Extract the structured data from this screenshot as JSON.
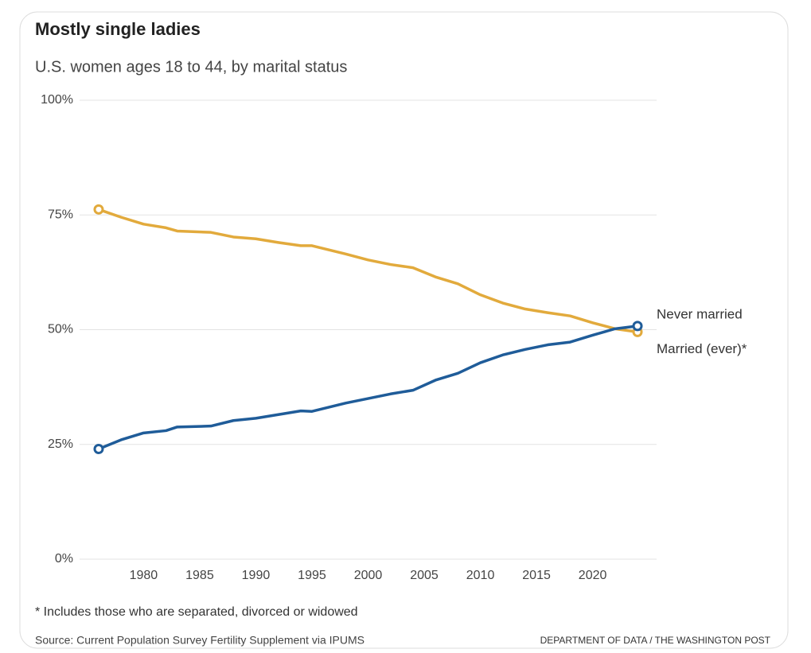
{
  "chart_data": {
    "type": "line",
    "title": "Mostly single ladies",
    "subtitle": "U.S. women ages 18 to 44, by marital status",
    "x": [
      1976,
      1978,
      1980,
      1982,
      1983,
      1986,
      1988,
      1990,
      1992,
      1994,
      1995,
      1998,
      2000,
      2002,
      2004,
      2006,
      2008,
      2010,
      2012,
      2014,
      2016,
      2018,
      2020,
      2022,
      2024
    ],
    "series": [
      {
        "name": "Married (ever)*",
        "color": "#e2aa3c",
        "values": [
          76.2,
          74.5,
          73,
          72.2,
          71.5,
          71.2,
          70.2,
          69.8,
          69,
          68.3,
          68.3,
          66.5,
          65.2,
          64.2,
          63.5,
          61.5,
          60,
          57.6,
          55.8,
          54.5,
          53.7,
          53,
          51.5,
          50.2,
          49.5
        ]
      },
      {
        "name": "Never married",
        "color": "#1f5c99",
        "values": [
          24,
          26,
          27.5,
          28,
          28.8,
          29,
          30.2,
          30.7,
          31.5,
          32.3,
          32.2,
          34,
          35,
          36,
          36.8,
          39,
          40.5,
          42.8,
          44.5,
          45.7,
          46.7,
          47.3,
          48.8,
          50.2,
          50.8
        ]
      }
    ],
    "xlim": [
      1974.3,
      2025.7
    ],
    "xticks": [
      1980,
      1985,
      1990,
      1995,
      2000,
      2005,
      2010,
      2015,
      2020
    ],
    "ylim": [
      0,
      100
    ],
    "yticks": [
      {
        "value": 0,
        "label": "0%"
      },
      {
        "value": 25,
        "label": "25%"
      },
      {
        "value": 50,
        "label": "50%"
      },
      {
        "value": 75,
        "label": "75%"
      },
      {
        "value": 100,
        "label": "100%"
      }
    ],
    "grid": true,
    "footnote": "* Includes those who are separated, divorced or widowed",
    "source": "Source: Current Population Survey Fertility Supplement via IPUMS",
    "credit": "DEPARTMENT OF DATA / THE WASHINGTON POST"
  }
}
